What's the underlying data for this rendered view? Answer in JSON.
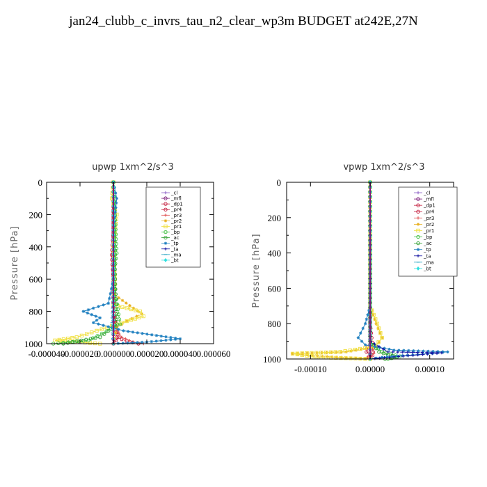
{
  "page": {
    "title": "jan24_clubb_c_invrs_tau_n2_clear_wp3m  BUDGET at242E,27N"
  },
  "chart_data": [
    {
      "type": "line",
      "title": "upwp   1xm^2/s^3",
      "ylabel": "Pressure [hPa]",
      "xlim": [
        -4e-05,
        6e-05
      ],
      "ylim": [
        1000,
        0
      ],
      "xticks": [
        -4e-05,
        -2e-05,
        0.0,
        2e-05,
        4e-05,
        6e-05
      ],
      "xtick_labels": [
        "-0.000040",
        "-0.000020",
        "0.000000",
        "0.000020",
        "0.000040",
        "0.000060"
      ],
      "yticks": [
        0,
        200,
        400,
        600,
        800,
        1000
      ],
      "ytick_labels": [
        "0",
        "200",
        "400",
        "600",
        "800",
        "1000"
      ],
      "legend_position": "top-right",
      "series": [
        {
          "name": "_cl",
          "color": "#8a5cc4",
          "marker": "+",
          "points": [
            [
              0,
              0
            ],
            [
              0,
              200
            ],
            [
              0,
              400
            ],
            [
              0,
              600
            ],
            [
              0,
              800
            ],
            [
              0,
              900
            ],
            [
              0,
              1000
            ]
          ]
        },
        {
          "name": "_mfl",
          "color": "#7a1c7a",
          "marker": "o",
          "points": [
            [
              0,
              0
            ],
            [
              0,
              200
            ],
            [
              0,
              400
            ],
            [
              0,
              600
            ],
            [
              0,
              800
            ],
            [
              0,
              1000
            ]
          ]
        },
        {
          "name": "_dp1",
          "color": "#c41c3c",
          "marker": "o",
          "points": [
            [
              0,
              0
            ],
            [
              0,
              400
            ],
            [
              0,
              800
            ],
            [
              2e-06,
              960
            ],
            [
              8e-06,
              985
            ],
            [
              1.5e-05,
              1000
            ]
          ]
        },
        {
          "name": "_pr4",
          "color": "#c41c3c",
          "marker": "o",
          "points": [
            [
              0,
              0
            ],
            [
              0,
              300
            ],
            [
              -1e-06,
              450
            ],
            [
              0,
              600
            ],
            [
              0,
              800
            ],
            [
              3e-06,
              960
            ],
            [
              0,
              1000
            ]
          ]
        },
        {
          "name": "_pr3",
          "color": "#e05050",
          "marker": "+",
          "points": [
            [
              0,
              0
            ],
            [
              0,
              400
            ],
            [
              0,
              700
            ],
            [
              2e-06,
              920
            ],
            [
              5e-06,
              960
            ],
            [
              1.2e-05,
              990
            ],
            [
              1.8e-05,
              1000
            ]
          ]
        },
        {
          "name": "_pr2",
          "color": "#e8b020",
          "marker": "*",
          "points": [
            [
              0,
              0
            ],
            [
              0,
              200
            ],
            [
              1e-06,
              700
            ],
            [
              1.2e-05,
              780
            ],
            [
              1.7e-05,
              815
            ],
            [
              8e-06,
              860
            ],
            [
              2e-06,
              900
            ],
            [
              0,
              1000
            ]
          ]
        },
        {
          "name": "_pr1",
          "color": "#f0e040",
          "marker": "s",
          "points": [
            [
              0,
              0
            ],
            [
              -1e-06,
              100
            ],
            [
              2e-06,
              200
            ],
            [
              0,
              400
            ],
            [
              1e-06,
              600
            ],
            [
              0,
              760
            ],
            [
              1.6e-05,
              800
            ],
            [
              1.8e-05,
              830
            ],
            [
              8e-06,
              860
            ],
            [
              -1e-05,
              920
            ],
            [
              -2.2e-05,
              960
            ],
            [
              -3.5e-05,
              980
            ],
            [
              -8e-06,
              1000
            ]
          ]
        },
        {
          "name": "_bp",
          "color": "#40c040",
          "marker": "o",
          "points": [
            [
              0,
              0
            ],
            [
              2e-06,
              440
            ],
            [
              0,
              600
            ],
            [
              4e-06,
              880
            ],
            [
              -1.5e-05,
              980
            ],
            [
              -3.6e-05,
              1000
            ]
          ]
        },
        {
          "name": "_ac",
          "color": "#30a030",
          "marker": "o",
          "points": [
            [
              0,
              0
            ],
            [
              1e-06,
              600
            ],
            [
              2e-06,
              880
            ],
            [
              -8e-06,
              960
            ],
            [
              -2.2e-05,
              985
            ],
            [
              -3e-05,
              1000
            ]
          ]
        },
        {
          "name": "_tp",
          "color": "#2080c0",
          "marker": "*",
          "points": [
            [
              0,
              0
            ],
            [
              2e-06,
              100
            ],
            [
              0,
              300
            ],
            [
              0,
              600
            ],
            [
              -3e-06,
              750
            ],
            [
              -1.8e-05,
              800
            ],
            [
              -8e-06,
              840
            ],
            [
              -1.2e-05,
              870
            ],
            [
              6e-06,
              920
            ],
            [
              4e-05,
              970
            ],
            [
              2e-05,
              990
            ],
            [
              0,
              1000
            ]
          ]
        },
        {
          "name": "_ta",
          "color": "#1010a0",
          "marker": "+",
          "points": [
            [
              0,
              0
            ],
            [
              0,
              500
            ],
            [
              0,
              800
            ],
            [
              0,
              1000
            ]
          ]
        },
        {
          "name": "_ma",
          "color": "#20a0c0",
          "marker": "-",
          "points": [
            [
              0,
              0
            ],
            [
              0,
              600
            ],
            [
              -1e-06,
              900
            ],
            [
              0,
              1000
            ]
          ]
        },
        {
          "name": "_bt",
          "color": "#30e0e0",
          "marker": "d",
          "points": [
            [
              0,
              0
            ],
            [
              0,
              500
            ],
            [
              0,
              1000
            ]
          ]
        }
      ]
    },
    {
      "type": "line",
      "title": "vpwp   1xm^2/s^3",
      "ylabel": "Pressure [hPa]",
      "xlim": [
        -0.00014,
        0.00014
      ],
      "ylim": [
        1000,
        0
      ],
      "xticks": [
        -0.0001,
        0.0,
        0.0001
      ],
      "xtick_labels": [
        "-0.00010",
        "0.00000",
        "0.00010"
      ],
      "yticks": [
        0,
        200,
        400,
        600,
        800,
        1000
      ],
      "ytick_labels": [
        "0",
        "200",
        "400",
        "600",
        "800",
        "1000"
      ],
      "legend_position": "top-right",
      "series": [
        {
          "name": "_cl",
          "color": "#8a5cc4",
          "marker": "+",
          "points": [
            [
              0,
              0
            ],
            [
              0,
              500
            ],
            [
              0,
              1000
            ]
          ]
        },
        {
          "name": "_mfl",
          "color": "#7a1c7a",
          "marker": "o",
          "points": [
            [
              0,
              0
            ],
            [
              0,
              500
            ],
            [
              0,
              1000
            ]
          ]
        },
        {
          "name": "_dp1",
          "color": "#c41c3c",
          "marker": "o",
          "points": [
            [
              0,
              0
            ],
            [
              0,
              800
            ],
            [
              5e-06,
              960
            ],
            [
              -3e-06,
              990
            ],
            [
              0,
              1000
            ]
          ]
        },
        {
          "name": "_pr4",
          "color": "#c41c3c",
          "marker": "o",
          "points": [
            [
              0,
              0
            ],
            [
              0,
              900
            ],
            [
              -6e-06,
              960
            ],
            [
              4e-06,
              980
            ],
            [
              0,
              1000
            ]
          ]
        },
        {
          "name": "_pr3",
          "color": "#e05050",
          "marker": "+",
          "points": [
            [
              0,
              0
            ],
            [
              0,
              900
            ],
            [
              6e-06,
              970
            ],
            [
              -4e-06,
              990
            ],
            [
              0,
              1000
            ]
          ]
        },
        {
          "name": "_pr2",
          "color": "#e8b020",
          "marker": "*",
          "points": [
            [
              0,
              0
            ],
            [
              0,
              700
            ],
            [
              1e-05,
              800
            ],
            [
              2e-05,
              880
            ],
            [
              1e-05,
              930
            ],
            [
              -4e-05,
              960
            ],
            [
              -0.00013,
              970
            ],
            [
              -8e-05,
              985
            ],
            [
              0,
              1000
            ]
          ]
        },
        {
          "name": "_pr1",
          "color": "#f0e040",
          "marker": "s",
          "points": [
            [
              0,
              0
            ],
            [
              0,
              700
            ],
            [
              1.2e-05,
              800
            ],
            [
              2e-05,
              880
            ],
            [
              8e-06,
              930
            ],
            [
              -5e-05,
              960
            ],
            [
              -0.00013,
              970
            ],
            [
              -9e-05,
              990
            ],
            [
              0,
              1000
            ]
          ]
        },
        {
          "name": "_bp",
          "color": "#40c040",
          "marker": "o",
          "points": [
            [
              0,
              0
            ],
            [
              0,
              900
            ],
            [
              2e-05,
              960
            ],
            [
              5e-05,
              985
            ],
            [
              3e-05,
              1000
            ]
          ]
        },
        {
          "name": "_ac",
          "color": "#30a030",
          "marker": "o",
          "points": [
            [
              0,
              0
            ],
            [
              0,
              900
            ],
            [
              1.5e-05,
              960
            ],
            [
              4.5e-05,
              990
            ],
            [
              2.5e-05,
              1000
            ]
          ]
        },
        {
          "name": "_tp",
          "color": "#2080c0",
          "marker": "*",
          "points": [
            [
              0,
              0
            ],
            [
              0,
              700
            ],
            [
              -8e-06,
              800
            ],
            [
              -2e-05,
              880
            ],
            [
              -8e-06,
              920
            ],
            [
              4e-05,
              950
            ],
            [
              0.00013,
              960
            ],
            [
              8e-05,
              975
            ],
            [
              2e-05,
              990
            ],
            [
              0,
              1000
            ]
          ]
        },
        {
          "name": "_ta",
          "color": "#1010a0",
          "marker": "+",
          "points": [
            [
              0,
              0
            ],
            [
              0,
              900
            ],
            [
              3e-05,
              960
            ],
            [
              0.00012,
              965
            ],
            [
              0,
              1000
            ]
          ]
        },
        {
          "name": "_ma",
          "color": "#20a0c0",
          "marker": "-",
          "points": [
            [
              0,
              0
            ],
            [
              0,
              1000
            ]
          ]
        },
        {
          "name": "_bt",
          "color": "#30e0e0",
          "marker": "d",
          "points": [
            [
              0,
              0
            ],
            [
              0,
              1000
            ]
          ]
        }
      ]
    }
  ]
}
